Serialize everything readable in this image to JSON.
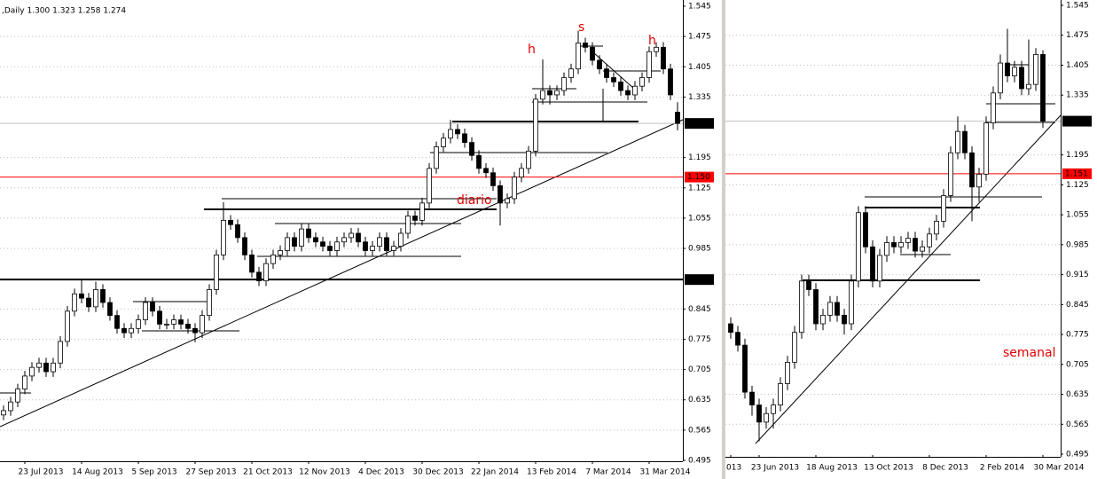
{
  "chart_data": [
    {
      "type": "candlestick",
      "header": ",Daily  1.300 1.323 1.258 1.274",
      "categories": [
        null,
        null,
        null,
        "23 Jul 2013",
        null,
        null,
        null,
        null,
        null,
        null,
        null,
        "14 Aug 2013",
        null,
        null,
        null,
        null,
        null,
        null,
        null,
        "5 Sep 2013",
        null,
        null,
        null,
        null,
        null,
        null,
        null,
        "27 Sep 2013",
        null,
        null,
        null,
        null,
        null,
        null,
        null,
        "21 Oct 2013",
        null,
        null,
        null,
        null,
        null,
        null,
        null,
        "12 Nov 2013",
        null,
        null,
        null,
        null,
        null,
        null,
        null,
        "4 Dec 2013",
        null,
        null,
        null,
        null,
        null,
        null,
        null,
        "30 Dec 2013",
        null,
        null,
        null,
        null,
        null,
        null,
        null,
        "22 Jan 2014",
        null,
        null,
        null,
        null,
        null,
        null,
        null,
        "13 Feb 2014",
        null,
        null,
        null,
        null,
        null,
        null,
        null,
        "7 Mar 2014",
        null,
        null,
        null,
        null,
        null,
        null,
        null,
        "31 Mar 2014",
        null,
        null,
        null,
        null
      ],
      "open": [
        0.6,
        0.61,
        0.63,
        0.66,
        0.69,
        0.71,
        0.72,
        0.7,
        0.72,
        0.77,
        0.84,
        0.88,
        0.87,
        0.85,
        0.89,
        0.86,
        0.83,
        0.8,
        0.79,
        0.8,
        0.82,
        0.86,
        0.84,
        0.81,
        0.81,
        0.82,
        0.81,
        0.8,
        0.79,
        0.83,
        0.89,
        0.97,
        1.05,
        1.04,
        1.01,
        0.97,
        0.93,
        0.91,
        0.95,
        0.97,
        0.98,
        1.01,
        0.99,
        1.03,
        1.01,
        1.0,
        0.99,
        0.98,
        1.0,
        1.01,
        1.02,
        1.0,
        0.98,
        0.99,
        1.01,
        0.98,
        0.99,
        1.02,
        1.06,
        1.05,
        1.09,
        1.17,
        1.22,
        1.24,
        1.26,
        1.25,
        1.23,
        1.2,
        1.17,
        1.16,
        1.13,
        1.09,
        1.1,
        1.15,
        1.17,
        1.21,
        1.33,
        1.35,
        1.34,
        1.35,
        1.38,
        1.4,
        1.46,
        1.45,
        1.42,
        1.4,
        1.38,
        1.37,
        1.35,
        1.34,
        1.36,
        1.38,
        1.44,
        1.45,
        1.4,
        1.3
      ],
      "high": [
        0.622,
        0.642,
        0.672,
        0.702,
        0.722,
        0.732,
        0.732,
        0.732,
        0.782,
        0.852,
        0.892,
        0.912,
        0.882,
        0.908,
        0.902,
        0.872,
        0.842,
        0.812,
        0.812,
        0.832,
        0.872,
        0.872,
        0.852,
        0.822,
        0.832,
        0.832,
        0.822,
        0.812,
        0.842,
        0.902,
        0.982,
        1.092,
        1.062,
        1.052,
        1.022,
        0.982,
        0.942,
        0.962,
        0.982,
        0.992,
        1.022,
        1.022,
        1.042,
        1.042,
        1.022,
        1.012,
        1.002,
        1.012,
        1.022,
        1.032,
        1.032,
        1.012,
        1.002,
        1.022,
        1.022,
        1.002,
        1.032,
        1.072,
        1.072,
        1.102,
        1.182,
        1.232,
        1.252,
        1.282,
        1.272,
        1.262,
        1.242,
        1.212,
        1.182,
        1.172,
        1.142,
        1.112,
        1.162,
        1.182,
        1.222,
        1.342,
        1.422,
        1.362,
        1.362,
        1.392,
        1.412,
        1.488,
        1.472,
        1.462,
        1.432,
        1.412,
        1.392,
        1.382,
        1.362,
        1.372,
        1.392,
        1.452,
        1.462,
        1.462,
        1.412,
        1.323
      ],
      "low": [
        0.588,
        0.598,
        0.618,
        0.648,
        0.678,
        0.698,
        0.688,
        0.688,
        0.708,
        0.758,
        0.828,
        0.858,
        0.838,
        0.838,
        0.848,
        0.818,
        0.788,
        0.778,
        0.778,
        0.788,
        0.808,
        0.828,
        0.798,
        0.798,
        0.798,
        0.798,
        0.788,
        0.768,
        0.778,
        0.818,
        0.878,
        0.958,
        1.028,
        0.998,
        0.958,
        0.918,
        0.898,
        0.898,
        0.938,
        0.958,
        0.968,
        0.978,
        0.978,
        0.998,
        0.988,
        0.978,
        0.968,
        0.968,
        0.988,
        0.998,
        0.988,
        0.968,
        0.968,
        0.978,
        0.968,
        0.968,
        0.978,
        1.008,
        1.038,
        1.038,
        1.078,
        1.158,
        1.208,
        1.228,
        1.238,
        1.218,
        1.188,
        1.158,
        1.148,
        1.118,
        1.038,
        1.078,
        1.088,
        1.138,
        1.158,
        1.198,
        1.318,
        1.318,
        1.328,
        1.338,
        1.368,
        1.388,
        1.438,
        1.408,
        1.388,
        1.368,
        1.358,
        1.338,
        1.328,
        1.328,
        1.348,
        1.368,
        1.428,
        1.388,
        1.328,
        1.258
      ],
      "close": [
        0.61,
        0.63,
        0.66,
        0.69,
        0.71,
        0.72,
        0.7,
        0.72,
        0.77,
        0.84,
        0.88,
        0.87,
        0.85,
        0.89,
        0.86,
        0.83,
        0.8,
        0.79,
        0.8,
        0.82,
        0.86,
        0.84,
        0.81,
        0.81,
        0.82,
        0.81,
        0.8,
        0.79,
        0.83,
        0.89,
        0.97,
        1.05,
        1.04,
        1.01,
        0.97,
        0.93,
        0.91,
        0.95,
        0.97,
        0.98,
        1.01,
        0.99,
        1.03,
        1.01,
        1.0,
        0.99,
        0.98,
        1.0,
        1.01,
        1.02,
        1.0,
        0.98,
        0.99,
        1.01,
        0.98,
        0.99,
        1.02,
        1.06,
        1.05,
        1.09,
        1.17,
        1.22,
        1.24,
        1.26,
        1.25,
        1.23,
        1.2,
        1.17,
        1.16,
        1.13,
        1.09,
        1.1,
        1.15,
        1.17,
        1.21,
        1.33,
        1.35,
        1.34,
        1.35,
        1.38,
        1.4,
        1.46,
        1.45,
        1.42,
        1.4,
        1.38,
        1.37,
        1.35,
        1.34,
        1.36,
        1.38,
        1.44,
        1.45,
        1.4,
        1.34,
        1.274
      ],
      "ylim": [
        0.495,
        1.545
      ],
      "yticks": [
        0.495,
        0.565,
        0.635,
        0.705,
        0.775,
        0.845,
        0.985,
        1.055,
        1.125,
        1.195,
        1.335,
        1.405,
        1.475,
        1.545
      ],
      "price_lines": [
        {
          "value": 1.274,
          "color": "#c0c0c0",
          "box_color": "#000000"
        },
        {
          "value": 1.15,
          "label": "1.150",
          "color": "#ff0000",
          "box_color": "#ff0000"
        },
        {
          "value": 0.913,
          "color": "#000000",
          "box_color": "#000000"
        }
      ],
      "annotations": [
        "h",
        "s",
        "h",
        "diario"
      ],
      "grid": true
    },
    {
      "type": "candlestick",
      "categories": [
        "013",
        null,
        null,
        null,
        "23 Jun 2013",
        null,
        null,
        null,
        null,
        null,
        null,
        null,
        "18 Aug 2013",
        null,
        null,
        null,
        null,
        null,
        null,
        null,
        "13 Oct 2013",
        null,
        null,
        null,
        null,
        null,
        null,
        null,
        "8 Dec 2013",
        null,
        null,
        null,
        null,
        null,
        null,
        null,
        "2 Feb 2014",
        null,
        null,
        null,
        null,
        null,
        null,
        null,
        "30 Mar 2014"
      ],
      "open": [
        0.8,
        0.78,
        0.75,
        0.64,
        0.61,
        0.57,
        0.59,
        0.61,
        0.66,
        0.71,
        0.78,
        0.9,
        0.88,
        0.8,
        0.82,
        0.85,
        0.82,
        0.8,
        0.9,
        1.06,
        0.98,
        0.9,
        0.96,
        0.99,
        0.98,
        0.99,
        1.0,
        0.97,
        0.98,
        1.01,
        1.04,
        1.1,
        1.2,
        1.25,
        1.2,
        1.12,
        1.15,
        1.27,
        1.34,
        1.41,
        1.38,
        1.4,
        1.35,
        1.36,
        1.43
      ],
      "high": [
        0.815,
        0.795,
        0.765,
        0.655,
        0.625,
        0.605,
        0.625,
        0.675,
        0.725,
        0.795,
        0.915,
        0.915,
        0.895,
        0.835,
        0.865,
        0.865,
        0.835,
        0.915,
        1.075,
        1.075,
        0.995,
        0.975,
        1.005,
        1.005,
        1.005,
        1.015,
        1.015,
        0.995,
        1.025,
        1.055,
        1.115,
        1.215,
        1.285,
        1.265,
        1.215,
        1.165,
        1.285,
        1.355,
        1.43,
        1.49,
        1.415,
        1.415,
        1.465,
        1.445,
        1.44
      ],
      "low": [
        0.765,
        0.735,
        0.625,
        0.585,
        0.525,
        0.555,
        0.555,
        0.595,
        0.645,
        0.695,
        0.765,
        0.865,
        0.785,
        0.785,
        0.805,
        0.805,
        0.775,
        0.785,
        0.885,
        0.965,
        0.885,
        0.885,
        0.945,
        0.965,
        0.965,
        0.975,
        0.955,
        0.955,
        0.965,
        0.995,
        1.025,
        1.085,
        1.185,
        1.185,
        1.04,
        1.085,
        1.135,
        1.255,
        1.325,
        1.365,
        1.365,
        1.335,
        1.335,
        1.345,
        1.258
      ],
      "close": [
        0.78,
        0.75,
        0.64,
        0.61,
        0.57,
        0.59,
        0.61,
        0.66,
        0.71,
        0.78,
        0.9,
        0.88,
        0.8,
        0.82,
        0.85,
        0.82,
        0.8,
        0.9,
        1.06,
        0.98,
        0.9,
        0.96,
        0.99,
        0.98,
        0.99,
        1.0,
        0.97,
        0.98,
        1.01,
        1.04,
        1.1,
        1.2,
        1.25,
        1.2,
        1.12,
        1.15,
        1.27,
        1.34,
        1.41,
        1.38,
        1.4,
        1.35,
        1.36,
        1.43,
        1.274
      ],
      "ylim": [
        0.495,
        1.545
      ],
      "yticks": [
        0.495,
        0.565,
        0.635,
        0.705,
        0.775,
        0.845,
        0.915,
        0.985,
        1.055,
        1.125,
        1.195,
        1.335,
        1.405,
        1.475,
        1.545
      ],
      "price_lines": [
        {
          "value": 1.274,
          "color": "#c0c0c0",
          "box_color": "#000000"
        },
        {
          "value": 1.151,
          "color": "#ff0000",
          "box_color": "#ff0000"
        }
      ],
      "annotations": [
        "semanal"
      ],
      "grid": true
    }
  ]
}
